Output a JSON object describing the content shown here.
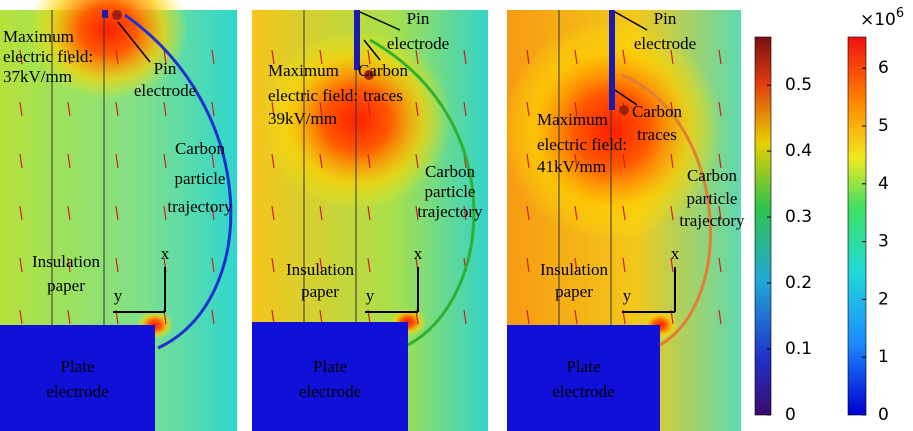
{
  "panels": [
    {
      "field_label": [
        "Maximum",
        "electric field:",
        "37kV/mm"
      ],
      "pin_label": [
        "Pin",
        "electrode"
      ],
      "trajectory_label": [
        "Carbon",
        "particle",
        "trajectory"
      ],
      "insulation_label": [
        "Insulation",
        "paper"
      ],
      "plate_label": [
        "Plate",
        "electrode"
      ],
      "axis_x": "x",
      "axis_y": "y"
    },
    {
      "field_label": [
        "Maximum",
        "electric field:",
        "39kV/mm"
      ],
      "pin_label": [
        "Pin",
        "electrode"
      ],
      "traces_label": [
        "Carbon",
        "traces"
      ],
      "trajectory_label": [
        "Carbon",
        "particle",
        "trajectory"
      ],
      "insulation_label": [
        "Insulation",
        "paper"
      ],
      "plate_label": [
        "Plate",
        "electrode"
      ],
      "axis_x": "x",
      "axis_y": "y"
    },
    {
      "field_label": [
        "Maximum",
        "electric field:",
        "41kV/mm"
      ],
      "pin_label": [
        "Pin",
        "electrode"
      ],
      "traces_label": [
        "Carbon",
        "traces"
      ],
      "trajectory_label": [
        "Carbon",
        "particle",
        "trajectory"
      ],
      "insulation_label": [
        "Insulation",
        "paper"
      ],
      "plate_label": [
        "Plate",
        "electrode"
      ],
      "axis_x": "x",
      "axis_y": "y"
    }
  ],
  "colorbars": [
    {
      "lim": [
        0,
        0.573
      ],
      "ticks": [
        0,
        0.1,
        0.2,
        0.3,
        0.4,
        0.5
      ]
    },
    {
      "lim": [
        0,
        6.54
      ],
      "ticks": [
        0,
        1,
        2,
        3,
        4,
        5,
        6
      ],
      "exponent_label": "×10",
      "exponent": "6"
    }
  ]
}
